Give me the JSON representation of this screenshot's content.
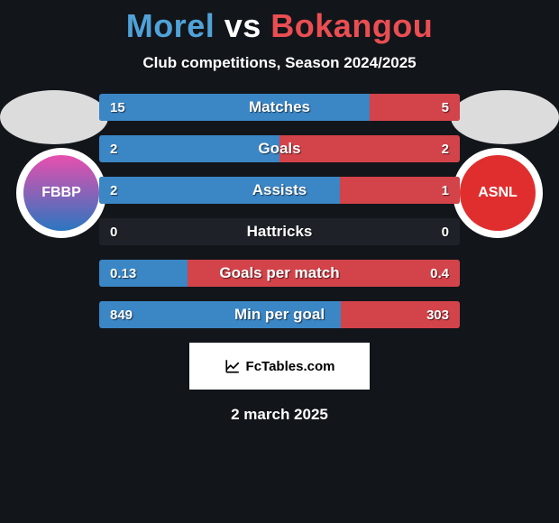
{
  "title": {
    "player1": "Morel",
    "vs": "vs",
    "player2": "Bokangou",
    "player1_color": "#50a2d8",
    "vs_color": "#ffffff",
    "player2_color": "#ea4e52"
  },
  "subtitle": "Club competitions, Season 2024/2025",
  "photo_placeholder_color": "#dcdcdc",
  "team1_logo": {
    "bg_gradient_top": "#e84fae",
    "bg_gradient_bottom": "#2b76c0",
    "text": "FBBP",
    "text_color": "#ffffff"
  },
  "team2_logo": {
    "bg": "#e02e2e",
    "text": "ASNL",
    "text_color": "#ffffff"
  },
  "bars": {
    "left_color": "#3b86c4",
    "right_color": "#d3434a",
    "track_color": "#1e2228",
    "rows": [
      {
        "label": "Matches",
        "left_val": "15",
        "right_val": "5",
        "left_pct": 75,
        "right_pct": 25
      },
      {
        "label": "Goals",
        "left_val": "2",
        "right_val": "2",
        "left_pct": 50,
        "right_pct": 50
      },
      {
        "label": "Assists",
        "left_val": "2",
        "right_val": "1",
        "left_pct": 66.7,
        "right_pct": 33.3
      },
      {
        "label": "Hattricks",
        "left_val": "0",
        "right_val": "0",
        "left_pct": 0,
        "right_pct": 0
      },
      {
        "label": "Goals per match",
        "left_val": "0.13",
        "right_val": "0.4",
        "left_pct": 24.5,
        "right_pct": 75.5
      },
      {
        "label": "Min per goal",
        "left_val": "849",
        "right_val": "303",
        "left_pct": 67,
        "right_pct": 33
      }
    ]
  },
  "credit": {
    "text": "FcTables.com",
    "icon_name": "chart-line-icon"
  },
  "date": "2 march 2025"
}
